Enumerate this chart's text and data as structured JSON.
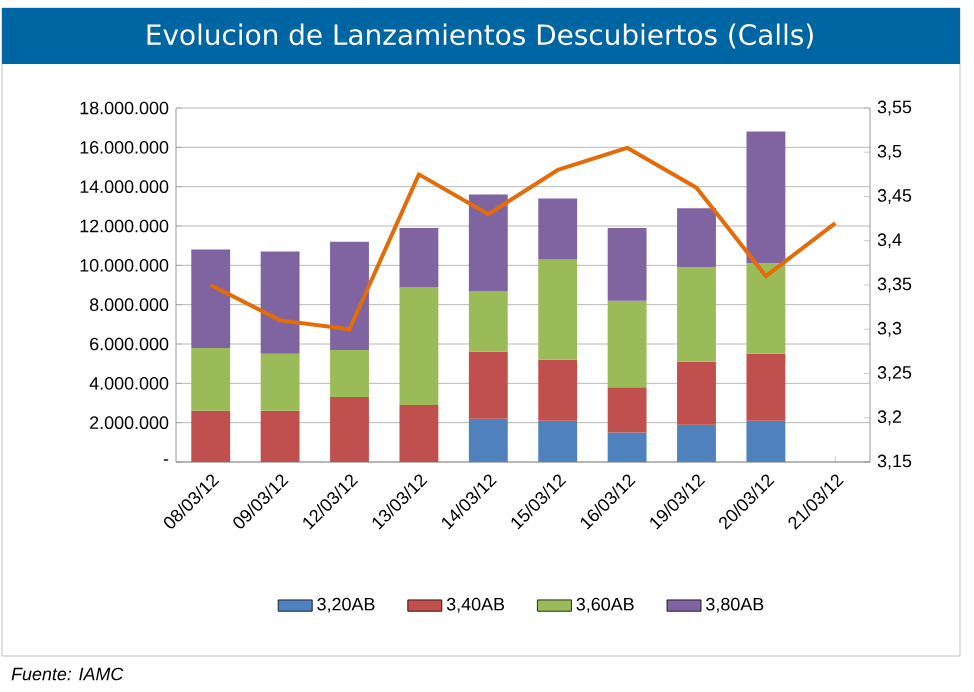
{
  "chart_data": {
    "type": "bar",
    "title": "Evolucion de Lanzamientos Descubiertos (Calls)",
    "stacked": true,
    "grid": "y",
    "legend": "bottom",
    "categories": [
      "08/03/12",
      "09/03/12",
      "12/03/12",
      "13/03/12",
      "14/03/12",
      "15/03/12",
      "16/03/12",
      "19/03/12",
      "20/03/12",
      "21/03/12"
    ],
    "series": [
      {
        "name": "3,20AB",
        "color": "#4f81bd",
        "values": [
          null,
          null,
          null,
          null,
          2200000,
          2100000,
          1500000,
          1900000,
          2100000,
          null
        ]
      },
      {
        "name": "3,40AB",
        "color": "#c0504d",
        "values": [
          2600000,
          2600000,
          3300000,
          2900000,
          3400000,
          3100000,
          2300000,
          3200000,
          3400000,
          null
        ]
      },
      {
        "name": "3,60AB",
        "color": "#9bbb59",
        "values": [
          3200000,
          2900000,
          2400000,
          6000000,
          3100000,
          5100000,
          4400000,
          4800000,
          4600000,
          null
        ]
      },
      {
        "name": "3,80AB",
        "color": "#8064a2",
        "values": [
          5000000,
          5200000,
          5500000,
          3000000,
          4900000,
          3100000,
          3700000,
          3000000,
          6700000,
          null
        ]
      },
      {
        "type": "line",
        "axis": "y2",
        "color": "#e36c09",
        "values": [
          3.35,
          3.31,
          3.3,
          3.475,
          3.43,
          3.48,
          3.505,
          3.46,
          3.36,
          3.42
        ]
      }
    ],
    "ylim": [
      0,
      18000000
    ],
    "yticks": [
      {
        "value": 0,
        "label": "-"
      },
      {
        "value": 2000000,
        "label": "2.000.000"
      },
      {
        "value": 4000000,
        "label": "4.000.000"
      },
      {
        "value": 6000000,
        "label": "6.000.000"
      },
      {
        "value": 8000000,
        "label": "8.000.000"
      },
      {
        "value": 10000000,
        "label": "10.000.000"
      },
      {
        "value": 12000000,
        "label": "12.000.000"
      },
      {
        "value": 14000000,
        "label": "14.000.000"
      },
      {
        "value": 16000000,
        "label": "16.000.000"
      },
      {
        "value": 18000000,
        "label": "18.000.000"
      }
    ],
    "y2lim": [
      3.15,
      3.55
    ],
    "y2ticks": [
      {
        "value": 3.15,
        "label": "3,15"
      },
      {
        "value": 3.2,
        "label": "3,2"
      },
      {
        "value": 3.25,
        "label": "3,25"
      },
      {
        "value": 3.3,
        "label": "3,3"
      },
      {
        "value": 3.35,
        "label": "3,35"
      },
      {
        "value": 3.4,
        "label": "3,4"
      },
      {
        "value": 3.45,
        "label": "3,45"
      },
      {
        "value": 3.5,
        "label": "3,5"
      },
      {
        "value": 3.55,
        "label": "3,55"
      }
    ],
    "annotations": [
      "Fuente:  IAMC"
    ]
  }
}
